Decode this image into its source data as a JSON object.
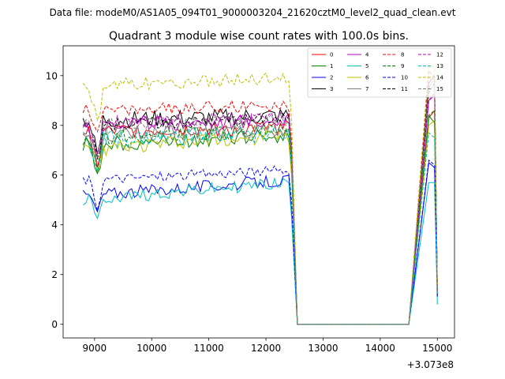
{
  "figure": {
    "suptitle": "Data file: modeM0/AS1A05_094T01_9000003204_21620cztM0_level2_quad_clean.evt"
  },
  "chart_data": {
    "type": "line",
    "title": "Quadrant 3 module wise count rates with 100.0s bins.",
    "xlabel": "",
    "ylabel": "",
    "x_offset_label": "+3.073e8",
    "xlim": [
      8450,
      15300
    ],
    "ylim": [
      -0.55,
      11.2
    ],
    "x_ticks": [
      9000,
      10000,
      11000,
      12000,
      13000,
      14000,
      15000
    ],
    "y_ticks": [
      0,
      2,
      4,
      6,
      8,
      10
    ],
    "legend_position": "top-right",
    "legend_columns": 4,
    "grid": false,
    "gap": {
      "drop_start": 12450,
      "zero_start": 12550,
      "zero_end": 14500,
      "peak_x": 14850,
      "peak2_x": 14950,
      "end_x": 15000
    },
    "series": [
      {
        "name": "0",
        "color": "#ff0000",
        "dash": "solid",
        "base": 7.7,
        "noise": 0.3,
        "drift": 0.2,
        "dip": 1.3,
        "peak": 8.3,
        "peak2": 8.6,
        "end": 1.3
      },
      {
        "name": "1",
        "color": "#008000",
        "dash": "solid",
        "base": 7.2,
        "noise": 0.3,
        "drift": 0.4,
        "dip": 1.1,
        "peak": 8.4,
        "peak2": 8.1,
        "end": 1.2
      },
      {
        "name": "2",
        "color": "#0000ff",
        "dash": "solid",
        "base": 5.2,
        "noise": 0.25,
        "drift": 0.6,
        "dip": 0.7,
        "peak": 6.5,
        "peak2": 6.3,
        "end": 1.1
      },
      {
        "name": "3",
        "color": "#000000",
        "dash": "solid",
        "base": 8.2,
        "noise": 0.35,
        "drift": 0.2,
        "dip": 1.4,
        "peak": 9.7,
        "peak2": 10.0,
        "end": 1.4
      },
      {
        "name": "4",
        "color": "#bf00bf",
        "dash": "solid",
        "base": 8.0,
        "noise": 0.3,
        "drift": 0.2,
        "dip": 1.2,
        "peak": 9.0,
        "peak2": 9.2,
        "end": 1.3
      },
      {
        "name": "5",
        "color": "#00bfbf",
        "dash": "solid",
        "base": 5.0,
        "noise": 0.25,
        "drift": 0.7,
        "dip": 0.9,
        "peak": 5.7,
        "peak2": 5.7,
        "end": 0.8
      },
      {
        "name": "6",
        "color": "#bfbf00",
        "dash": "solid",
        "base": 7.0,
        "noise": 0.3,
        "drift": 0.6,
        "dip": 1.1,
        "peak": 8.0,
        "peak2": 8.2,
        "end": 1.2
      },
      {
        "name": "7",
        "color": "#808080",
        "dash": "solid",
        "base": 7.6,
        "noise": 0.3,
        "drift": 0.2,
        "dip": 1.2,
        "peak": 9.5,
        "peak2": 9.9,
        "end": 1.3
      },
      {
        "name": "8",
        "color": "#ff0000",
        "dash": "dashed",
        "base": 8.6,
        "noise": 0.25,
        "drift": 0.2,
        "dip": 1.1,
        "peak": 10.2,
        "peak2": 9.9,
        "end": 1.3
      },
      {
        "name": "9",
        "color": "#008000",
        "dash": "dashed",
        "base": 7.5,
        "noise": 0.3,
        "drift": 0.3,
        "dip": 1.2,
        "peak": 8.4,
        "peak2": 8.6,
        "end": 1.2
      },
      {
        "name": "10",
        "color": "#0000ff",
        "dash": "dashed",
        "base": 5.8,
        "noise": 0.2,
        "drift": 0.4,
        "dip": 1.1,
        "peak": 6.6,
        "peak2": 6.4,
        "end": 1.1
      },
      {
        "name": "11",
        "color": "#000000",
        "dash": "dashed",
        "base": 8.0,
        "noise": 0.25,
        "drift": 0.3,
        "dip": 1.2,
        "peak": 9.3,
        "peak2": 9.7,
        "end": 1.3
      },
      {
        "name": "12",
        "color": "#bf00bf",
        "dash": "dashed",
        "base": 8.1,
        "noise": 0.25,
        "drift": 0.2,
        "dip": 1.2,
        "peak": 9.0,
        "peak2": 9.3,
        "end": 1.3
      },
      {
        "name": "13",
        "color": "#00bfbf",
        "dash": "dashed",
        "base": 7.4,
        "noise": 0.35,
        "drift": 0.3,
        "dip": 1.2,
        "peak": 7.7,
        "peak2": 7.5,
        "end": 1.2
      },
      {
        "name": "14",
        "color": "#bfbf00",
        "dash": "dashed",
        "base": 9.6,
        "noise": 0.25,
        "drift": 0.3,
        "dip": 1.4,
        "peak": 10.5,
        "peak2": 10.3,
        "end": 1.5
      },
      {
        "name": "15",
        "color": "#808080",
        "dash": "dashed",
        "base": 8.0,
        "noise": 0.25,
        "drift": 0.2,
        "dip": 1.2,
        "peak": 9.4,
        "peak2": 9.6,
        "end": 1.3
      }
    ]
  }
}
